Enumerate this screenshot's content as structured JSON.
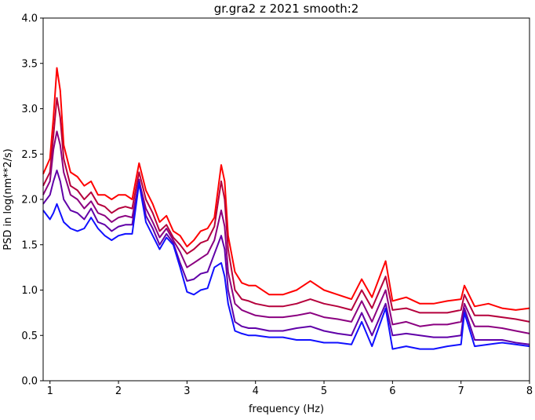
{
  "chart_data": {
    "type": "line",
    "title": "gr.gra2 z 2021 smooth:2",
    "xlabel": "frequency (Hz)",
    "ylabel": "PSD in log(nm**2/s)",
    "xlim": [
      0.9,
      8.0
    ],
    "ylim": [
      0.0,
      4.0
    ],
    "xticks": [
      "1",
      "2",
      "3",
      "4",
      "5",
      "6",
      "7",
      "8"
    ],
    "yticks": [
      "0.0",
      "0.5",
      "1.0",
      "1.5",
      "2.0",
      "2.5",
      "3.0",
      "3.5",
      "4.0"
    ],
    "grid": false,
    "legend": "none",
    "series": [
      {
        "color": "#ff0000",
        "x": [
          0.9,
          1.0,
          1.05,
          1.1,
          1.15,
          1.2,
          1.3,
          1.4,
          1.5,
          1.6,
          1.7,
          1.8,
          1.9,
          2.0,
          2.1,
          2.2,
          2.3,
          2.4,
          2.5,
          2.6,
          2.7,
          2.8,
          2.9,
          3.0,
          3.1,
          3.2,
          3.3,
          3.4,
          3.5,
          3.55,
          3.6,
          3.7,
          3.8,
          3.9,
          4.0,
          4.2,
          4.4,
          4.6,
          4.8,
          5.0,
          5.2,
          5.4,
          5.55,
          5.7,
          5.9,
          6.0,
          6.2,
          6.4,
          6.6,
          6.8,
          7.0,
          7.05,
          7.2,
          7.4,
          7.6,
          7.8,
          8.0
        ],
        "y": [
          2.28,
          2.45,
          2.9,
          3.45,
          3.2,
          2.6,
          2.3,
          2.25,
          2.15,
          2.2,
          2.05,
          2.05,
          2.0,
          2.05,
          2.05,
          2.0,
          2.4,
          2.1,
          1.95,
          1.75,
          1.82,
          1.65,
          1.6,
          1.48,
          1.55,
          1.65,
          1.68,
          1.8,
          2.38,
          2.2,
          1.6,
          1.2,
          1.08,
          1.05,
          1.05,
          0.95,
          0.95,
          1.0,
          1.1,
          1.0,
          0.95,
          0.9,
          1.12,
          0.92,
          1.32,
          0.88,
          0.92,
          0.85,
          0.85,
          0.88,
          0.9,
          1.05,
          0.82,
          0.85,
          0.8,
          0.78,
          0.8
        ]
      },
      {
        "color": "#b5003c",
        "x": [
          0.9,
          1.0,
          1.05,
          1.1,
          1.15,
          1.2,
          1.3,
          1.4,
          1.5,
          1.6,
          1.7,
          1.8,
          1.9,
          2.0,
          2.1,
          2.2,
          2.3,
          2.4,
          2.5,
          2.6,
          2.7,
          2.8,
          2.9,
          3.0,
          3.1,
          3.2,
          3.3,
          3.4,
          3.5,
          3.55,
          3.6,
          3.7,
          3.8,
          3.9,
          4.0,
          4.2,
          4.4,
          4.6,
          4.8,
          5.0,
          5.2,
          5.4,
          5.55,
          5.7,
          5.9,
          6.0,
          6.2,
          6.4,
          6.6,
          6.8,
          7.0,
          7.05,
          7.2,
          7.4,
          7.6,
          7.8,
          8.0
        ],
        "y": [
          2.15,
          2.3,
          2.7,
          3.12,
          2.9,
          2.45,
          2.15,
          2.1,
          2.0,
          2.08,
          1.95,
          1.92,
          1.85,
          1.9,
          1.92,
          1.9,
          2.3,
          2.0,
          1.85,
          1.65,
          1.72,
          1.58,
          1.5,
          1.4,
          1.45,
          1.52,
          1.55,
          1.7,
          2.2,
          2.0,
          1.45,
          1.0,
          0.9,
          0.88,
          0.85,
          0.82,
          0.82,
          0.85,
          0.9,
          0.85,
          0.82,
          0.78,
          1.0,
          0.8,
          1.15,
          0.78,
          0.8,
          0.75,
          0.75,
          0.75,
          0.78,
          0.95,
          0.72,
          0.72,
          0.7,
          0.68,
          0.65
        ]
      },
      {
        "color": "#8b0080",
        "x": [
          0.9,
          1.0,
          1.05,
          1.1,
          1.15,
          1.2,
          1.3,
          1.4,
          1.5,
          1.6,
          1.7,
          1.8,
          1.9,
          2.0,
          2.1,
          2.2,
          2.3,
          2.4,
          2.5,
          2.6,
          2.7,
          2.8,
          2.9,
          3.0,
          3.1,
          3.2,
          3.3,
          3.4,
          3.5,
          3.55,
          3.6,
          3.7,
          3.8,
          3.9,
          4.0,
          4.2,
          4.4,
          4.6,
          4.8,
          5.0,
          5.2,
          5.4,
          5.55,
          5.7,
          5.9,
          6.0,
          6.2,
          6.4,
          6.6,
          6.8,
          7.0,
          7.05,
          7.2,
          7.4,
          7.6,
          7.8,
          8.0
        ],
        "y": [
          2.05,
          2.2,
          2.55,
          2.75,
          2.6,
          2.3,
          2.05,
          2.0,
          1.9,
          1.98,
          1.85,
          1.82,
          1.75,
          1.8,
          1.82,
          1.8,
          2.2,
          1.9,
          1.75,
          1.58,
          1.68,
          1.55,
          1.42,
          1.25,
          1.3,
          1.35,
          1.4,
          1.55,
          1.88,
          1.7,
          1.2,
          0.85,
          0.78,
          0.75,
          0.72,
          0.7,
          0.7,
          0.72,
          0.75,
          0.7,
          0.68,
          0.65,
          0.88,
          0.65,
          1.0,
          0.62,
          0.65,
          0.6,
          0.62,
          0.62,
          0.65,
          0.85,
          0.6,
          0.6,
          0.58,
          0.55,
          0.52
        ]
      },
      {
        "color": "#6000a8",
        "x": [
          0.9,
          1.0,
          1.05,
          1.1,
          1.15,
          1.2,
          1.3,
          1.4,
          1.5,
          1.6,
          1.7,
          1.8,
          1.9,
          2.0,
          2.1,
          2.2,
          2.3,
          2.4,
          2.5,
          2.6,
          2.7,
          2.8,
          2.9,
          3.0,
          3.1,
          3.2,
          3.3,
          3.4,
          3.5,
          3.55,
          3.6,
          3.7,
          3.8,
          3.9,
          4.0,
          4.2,
          4.4,
          4.6,
          4.8,
          5.0,
          5.2,
          5.4,
          5.55,
          5.7,
          5.9,
          6.0,
          6.2,
          6.4,
          6.6,
          6.8,
          7.0,
          7.05,
          7.2,
          7.4,
          7.6,
          7.8,
          8.0
        ],
        "y": [
          1.95,
          2.05,
          2.2,
          2.32,
          2.2,
          2.0,
          1.88,
          1.85,
          1.78,
          1.9,
          1.75,
          1.72,
          1.65,
          1.7,
          1.72,
          1.72,
          2.22,
          1.82,
          1.68,
          1.5,
          1.62,
          1.52,
          1.3,
          1.1,
          1.12,
          1.18,
          1.2,
          1.4,
          1.6,
          1.45,
          1.0,
          0.65,
          0.6,
          0.58,
          0.58,
          0.55,
          0.55,
          0.58,
          0.6,
          0.55,
          0.52,
          0.5,
          0.75,
          0.5,
          0.85,
          0.5,
          0.52,
          0.5,
          0.48,
          0.48,
          0.5,
          0.8,
          0.45,
          0.45,
          0.45,
          0.42,
          0.4
        ]
      },
      {
        "color": "#1010ff",
        "x": [
          0.9,
          1.0,
          1.05,
          1.1,
          1.15,
          1.2,
          1.3,
          1.4,
          1.5,
          1.6,
          1.7,
          1.8,
          1.9,
          2.0,
          2.1,
          2.2,
          2.3,
          2.4,
          2.5,
          2.6,
          2.7,
          2.8,
          2.9,
          3.0,
          3.1,
          3.2,
          3.3,
          3.4,
          3.5,
          3.55,
          3.6,
          3.7,
          3.8,
          3.9,
          4.0,
          4.2,
          4.4,
          4.6,
          4.8,
          5.0,
          5.2,
          5.4,
          5.55,
          5.7,
          5.9,
          6.0,
          6.2,
          6.4,
          6.6,
          6.8,
          7.0,
          7.05,
          7.2,
          7.4,
          7.6,
          7.8,
          8.0
        ],
        "y": [
          1.88,
          1.78,
          1.85,
          1.95,
          1.85,
          1.75,
          1.68,
          1.65,
          1.68,
          1.8,
          1.68,
          1.6,
          1.55,
          1.6,
          1.62,
          1.62,
          2.18,
          1.75,
          1.6,
          1.45,
          1.58,
          1.5,
          1.25,
          0.98,
          0.95,
          1.0,
          1.02,
          1.25,
          1.3,
          1.15,
          0.85,
          0.55,
          0.52,
          0.5,
          0.5,
          0.48,
          0.48,
          0.45,
          0.45,
          0.42,
          0.42,
          0.4,
          0.65,
          0.38,
          0.8,
          0.35,
          0.38,
          0.35,
          0.35,
          0.38,
          0.4,
          0.75,
          0.38,
          0.4,
          0.42,
          0.4,
          0.38
        ]
      }
    ]
  }
}
